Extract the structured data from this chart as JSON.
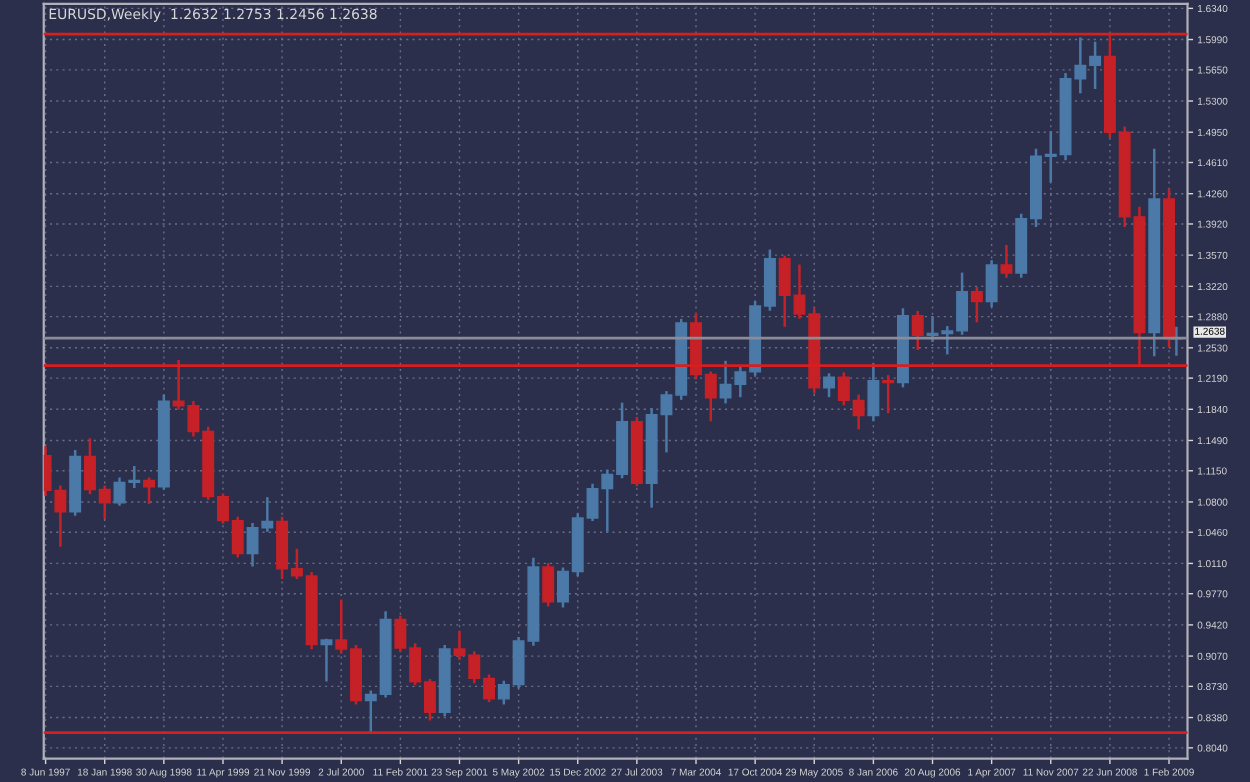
{
  "chart_data": {
    "type": "candlestick",
    "title": "EURUSD,Weekly  1.2632 1.2753 1.2456 1.2638",
    "x": [
      "1997-06-08",
      "1997-08-03",
      "1997-09-28",
      "1997-11-23",
      "1998-01-18",
      "1998-03-15",
      "1998-05-10",
      "1998-07-05",
      "1998-08-30",
      "1998-10-25",
      "1998-12-20",
      "1999-02-14",
      "1999-04-11",
      "1999-06-06",
      "1999-08-01",
      "1999-09-26",
      "1999-11-21",
      "2000-01-16",
      "2000-03-12",
      "2000-05-07",
      "2000-07-02",
      "2000-08-27",
      "2000-10-22",
      "2000-12-17",
      "2001-02-11",
      "2001-04-08",
      "2001-06-03",
      "2001-07-29",
      "2001-09-23",
      "2001-11-18",
      "2002-01-13",
      "2002-03-10",
      "2002-05-05",
      "2002-06-30",
      "2002-08-25",
      "2002-10-20",
      "2002-12-15",
      "2003-02-09",
      "2003-04-06",
      "2003-06-01",
      "2003-07-27",
      "2003-09-21",
      "2003-11-16",
      "2004-01-11",
      "2004-03-07",
      "2004-05-02",
      "2004-06-27",
      "2004-08-22",
      "2004-10-17",
      "2004-12-12",
      "2005-02-06",
      "2005-04-03",
      "2005-05-29",
      "2005-07-24",
      "2005-09-18",
      "2005-11-13",
      "2006-01-08",
      "2006-03-05",
      "2006-04-30",
      "2006-06-25",
      "2006-08-20",
      "2006-10-15",
      "2006-12-10",
      "2007-02-04",
      "2007-04-01",
      "2007-05-27",
      "2007-07-22",
      "2007-09-16",
      "2007-11-11",
      "2008-01-06",
      "2008-03-02",
      "2008-04-27",
      "2008-06-22",
      "2008-08-17",
      "2008-10-12",
      "2008-12-07",
      "2009-02-01",
      "2009-03-01"
    ],
    "ohlc": [
      [
        1.132,
        1.141,
        1.088,
        1.093
      ],
      [
        1.093,
        1.097,
        1.031,
        1.069
      ],
      [
        1.069,
        1.137,
        1.066,
        1.131
      ],
      [
        1.131,
        1.15,
        1.09,
        1.094
      ],
      [
        1.094,
        1.097,
        1.062,
        1.079
      ],
      [
        1.079,
        1.106,
        1.077,
        1.102
      ],
      [
        1.102,
        1.119,
        1.097,
        1.104
      ],
      [
        1.104,
        1.106,
        1.079,
        1.097
      ],
      [
        1.097,
        1.199,
        1.095,
        1.193
      ],
      [
        1.193,
        1.238,
        1.185,
        1.188
      ],
      [
        1.188,
        1.192,
        1.155,
        1.159
      ],
      [
        1.159,
        1.163,
        1.084,
        1.086
      ],
      [
        1.086,
        1.088,
        1.057,
        1.059
      ],
      [
        1.059,
        1.062,
        1.019,
        1.022
      ],
      [
        1.022,
        1.055,
        1.009,
        1.051
      ],
      [
        1.051,
        1.084,
        1.048,
        1.058
      ],
      [
        1.058,
        1.062,
        0.995,
        1.005
      ],
      [
        1.005,
        1.026,
        0.995,
        0.997
      ],
      [
        0.997,
        1.0,
        0.916,
        0.92
      ],
      [
        0.92,
        0.925,
        0.88,
        0.925
      ],
      [
        0.925,
        0.969,
        0.911,
        0.915
      ],
      [
        0.915,
        0.918,
        0.854,
        0.857
      ],
      [
        0.857,
        0.867,
        0.821,
        0.864
      ],
      [
        0.864,
        0.956,
        0.862,
        0.948
      ],
      [
        0.948,
        0.951,
        0.913,
        0.916
      ],
      [
        0.916,
        0.92,
        0.876,
        0.878
      ],
      [
        0.878,
        0.88,
        0.836,
        0.844
      ],
      [
        0.844,
        0.918,
        0.841,
        0.915
      ],
      [
        0.915,
        0.934,
        0.904,
        0.908
      ],
      [
        0.908,
        0.911,
        0.878,
        0.882
      ],
      [
        0.882,
        0.885,
        0.857,
        0.859
      ],
      [
        0.859,
        0.878,
        0.854,
        0.875
      ],
      [
        0.875,
        0.927,
        0.872,
        0.924
      ],
      [
        0.924,
        1.016,
        0.92,
        1.007
      ],
      [
        1.007,
        1.01,
        0.964,
        0.968
      ],
      [
        0.968,
        1.005,
        0.963,
        1.002
      ],
      [
        1.002,
        1.066,
        0.998,
        1.062
      ],
      [
        1.062,
        1.099,
        1.06,
        1.095
      ],
      [
        1.095,
        1.115,
        1.048,
        1.111
      ],
      [
        1.111,
        1.19,
        1.108,
        1.17
      ],
      [
        1.17,
        1.174,
        1.099,
        1.101
      ],
      [
        1.101,
        1.184,
        1.075,
        1.178
      ],
      [
        1.178,
        1.203,
        1.137,
        1.2
      ],
      [
        1.2,
        1.284,
        1.196,
        1.281
      ],
      [
        1.281,
        1.291,
        1.219,
        1.223
      ],
      [
        1.223,
        1.225,
        1.172,
        1.197
      ],
      [
        1.197,
        1.237,
        1.192,
        1.212
      ],
      [
        1.212,
        1.23,
        1.199,
        1.226
      ],
      [
        1.226,
        1.304,
        1.223,
        1.3
      ],
      [
        1.3,
        1.362,
        1.296,
        1.353
      ],
      [
        1.353,
        1.355,
        1.278,
        1.312
      ],
      [
        1.312,
        1.345,
        1.287,
        1.291
      ],
      [
        1.291,
        1.296,
        1.203,
        1.208
      ],
      [
        1.208,
        1.223,
        1.199,
        1.22
      ],
      [
        1.22,
        1.224,
        1.19,
        1.194
      ],
      [
        1.194,
        1.199,
        1.163,
        1.177
      ],
      [
        1.177,
        1.234,
        1.172,
        1.216
      ],
      [
        1.216,
        1.221,
        1.181,
        1.214
      ],
      [
        1.214,
        1.296,
        1.21,
        1.289
      ],
      [
        1.289,
        1.293,
        1.252,
        1.267
      ],
      [
        1.267,
        1.287,
        1.261,
        1.269
      ],
      [
        1.269,
        1.276,
        1.247,
        1.272
      ],
      [
        1.272,
        1.336,
        1.269,
        1.316
      ],
      [
        1.316,
        1.32,
        1.283,
        1.305
      ],
      [
        1.305,
        1.35,
        1.3,
        1.346
      ],
      [
        1.346,
        1.367,
        1.333,
        1.337
      ],
      [
        1.337,
        1.402,
        1.333,
        1.398
      ],
      [
        1.398,
        1.475,
        1.39,
        1.468
      ],
      [
        1.468,
        1.495,
        1.44,
        1.47
      ],
      [
        1.47,
        1.56,
        1.465,
        1.555
      ],
      [
        1.555,
        1.6,
        1.54,
        1.57
      ],
      [
        1.57,
        1.595,
        1.545,
        1.58
      ],
      [
        1.58,
        1.604,
        1.49,
        1.495
      ],
      [
        1.495,
        1.5,
        1.39,
        1.4
      ],
      [
        1.4,
        1.41,
        1.233,
        1.27
      ],
      [
        1.27,
        1.475,
        1.245,
        1.42
      ],
      [
        1.42,
        1.43,
        1.255,
        1.263
      ],
      [
        1.2632,
        1.2753,
        1.2456,
        1.2638
      ]
    ],
    "colors": [
      "#c62127",
      "#c62127",
      "#4b79a8",
      "#c62127",
      "#c62127",
      "#4b79a8",
      "#4b79a8",
      "#c62127",
      "#4b79a8",
      "#c62127",
      "#c62127",
      "#c62127",
      "#c62127",
      "#c62127",
      "#4b79a8",
      "#4b79a8",
      "#c62127",
      "#c62127",
      "#c62127",
      "#4b79a8",
      "#c62127",
      "#c62127",
      "#4b79a8",
      "#4b79a8",
      "#c62127",
      "#c62127",
      "#c62127",
      "#4b79a8",
      "#c62127",
      "#c62127",
      "#c62127",
      "#4b79a8",
      "#4b79a8",
      "#4b79a8",
      "#c62127",
      "#4b79a8",
      "#4b79a8",
      "#4b79a8",
      "#4b79a8",
      "#4b79a8",
      "#c62127",
      "#4b79a8",
      "#4b79a8",
      "#4b79a8",
      "#c62127",
      "#c62127",
      "#4b79a8",
      "#4b79a8",
      "#4b79a8",
      "#4b79a8",
      "#c62127",
      "#c62127",
      "#c62127",
      "#4b79a8",
      "#c62127",
      "#c62127",
      "#4b79a8",
      "#c62127",
      "#4b79a8",
      "#c62127",
      "#4b79a8",
      "#4b79a8",
      "#4b79a8",
      "#c62127",
      "#4b79a8",
      "#c62127",
      "#4b79a8",
      "#4b79a8",
      "#4b79a8",
      "#4b79a8",
      "#4b79a8",
      "#4b79a8",
      "#c62127",
      "#c62127",
      "#c62127",
      "#4b79a8",
      "#c62127",
      "#4b79a8"
    ],
    "xlim": [
      "1997-06-01",
      "2009-04-12"
    ],
    "xticks": [
      {
        "value": "1997-06-08",
        "label": "8 Jun 1997"
      },
      {
        "value": "1998-01-18",
        "label": "18 Jan 1998"
      },
      {
        "value": "1998-08-30",
        "label": "30 Aug 1998"
      },
      {
        "value": "1999-04-11",
        "label": "11 Apr 1999"
      },
      {
        "value": "1999-11-21",
        "label": "21 Nov 1999"
      },
      {
        "value": "2000-07-02",
        "label": "2 Jul 2000"
      },
      {
        "value": "2001-02-11",
        "label": "11 Feb 2001"
      },
      {
        "value": "2001-09-23",
        "label": "23 Sep 2001"
      },
      {
        "value": "2002-05-05",
        "label": "5 May 2002"
      },
      {
        "value": "2002-12-15",
        "label": "15 Dec 2002"
      },
      {
        "value": "2003-07-27",
        "label": "27 Jul 2003"
      },
      {
        "value": "2004-03-07",
        "label": "7 Mar 2004"
      },
      {
        "value": "2004-10-17",
        "label": "17 Oct 2004"
      },
      {
        "value": "2005-05-29",
        "label": "29 May 2005"
      },
      {
        "value": "2006-01-08",
        "label": "8 Jan 2006"
      },
      {
        "value": "2006-08-20",
        "label": "20 Aug 2006"
      },
      {
        "value": "2007-04-01",
        "label": "1 Apr 2007"
      },
      {
        "value": "2007-11-11",
        "label": "11 Nov 2007"
      },
      {
        "value": "2008-06-22",
        "label": "22 Jun 2008"
      },
      {
        "value": "2009-02-01",
        "label": "1 Feb 2009"
      }
    ],
    "ylim": [
      0.792,
      1.639
    ],
    "yticks": [
      {
        "value": 1.634,
        "label": "1.6340"
      },
      {
        "value": 1.599,
        "label": "1.5990"
      },
      {
        "value": 1.565,
        "label": "1.5650"
      },
      {
        "value": 1.53,
        "label": "1.5300"
      },
      {
        "value": 1.495,
        "label": "1.4950"
      },
      {
        "value": 1.461,
        "label": "1.4610"
      },
      {
        "value": 1.426,
        "label": "1.4260"
      },
      {
        "value": 1.392,
        "label": "1.3920"
      },
      {
        "value": 1.357,
        "label": "1.3570"
      },
      {
        "value": 1.322,
        "label": "1.3220"
      },
      {
        "value": 1.288,
        "label": "1.2880"
      },
      {
        "value": 1.253,
        "label": "1.2530"
      },
      {
        "value": 1.219,
        "label": "1.2190"
      },
      {
        "value": 1.184,
        "label": "1.1840"
      },
      {
        "value": 1.149,
        "label": "1.1490"
      },
      {
        "value": 1.115,
        "label": "1.1150"
      },
      {
        "value": 1.08,
        "label": "1.0800"
      },
      {
        "value": 1.046,
        "label": "1.0460"
      },
      {
        "value": 1.011,
        "label": "1.0110"
      },
      {
        "value": 0.977,
        "label": "0.9770"
      },
      {
        "value": 0.942,
        "label": "0.9420"
      },
      {
        "value": 0.907,
        "label": "0.9070"
      },
      {
        "value": 0.873,
        "label": "0.8730"
      },
      {
        "value": 0.838,
        "label": "0.8380"
      },
      {
        "value": 0.804,
        "label": "0.8040"
      }
    ],
    "ref_lines": [
      {
        "axis": "y",
        "value": 1.605,
        "color": "#d81e1e"
      },
      {
        "axis": "y",
        "value": 1.233,
        "color": "#d81e1e"
      },
      {
        "axis": "y",
        "value": 0.821,
        "color": "#d81e1e"
      },
      {
        "axis": "y",
        "value": 1.2638,
        "label": "1.2638",
        "color": "#8c8c96"
      }
    ],
    "grid": true
  }
}
